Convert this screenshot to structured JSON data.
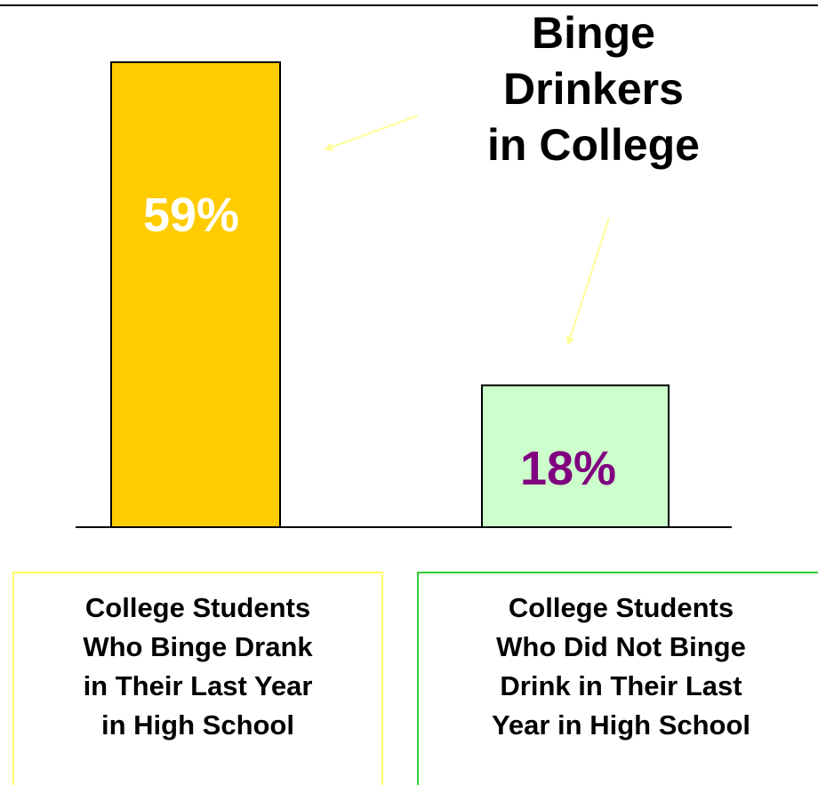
{
  "chart_data": {
    "type": "bar",
    "title_lines": [
      "Binge",
      "Drinkers",
      "in College"
    ],
    "categories": [
      [
        "College Students",
        "Who Binge Drank",
        "in Their Last Year",
        "in High School"
      ],
      [
        "College Students",
        "Who Did Not Binge",
        "Drink in Their Last",
        "Year in High School"
      ]
    ],
    "values": [
      59,
      18
    ],
    "value_labels": [
      "59%",
      "18%"
    ],
    "ylim": [
      0,
      59
    ],
    "grid": false,
    "colors": {
      "bars": [
        "#ffcc00",
        "#ccffcc"
      ],
      "labels": [
        "#ffffff",
        "#800080"
      ],
      "arrows": "#ffff99",
      "category_box_borders": [
        "#ffff66",
        "#33cc33"
      ]
    }
  }
}
